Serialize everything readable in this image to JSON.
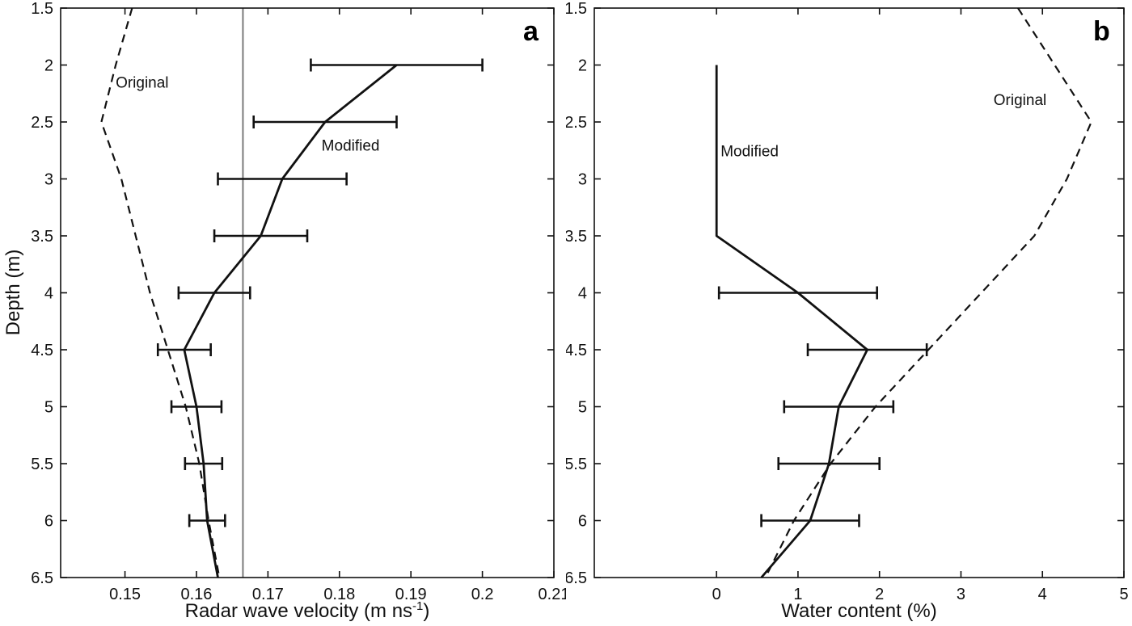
{
  "figure": {
    "background": "#ffffff",
    "ink_color": "#111111",
    "ref_line_color": "#7a7a7a"
  },
  "chart_data": [
    {
      "type": "line",
      "panel_letter": "a",
      "xlabel_pre": "Radar wave velocity (m ns",
      "xlabel_sup": "-1",
      "xlabel_post": ")",
      "ylabel": "Depth (m)",
      "xlim": [
        0.141,
        0.21
      ],
      "ylim": [
        1.5,
        6.5
      ],
      "y_axis_inverted": true,
      "grid": false,
      "xticks": [
        0.15,
        0.16,
        0.17,
        0.18,
        0.19,
        0.2,
        0.21
      ],
      "xtick_labels": [
        "0.15",
        "0.16",
        "0.17",
        "0.18",
        "0.19",
        "0.2",
        "0.21"
      ],
      "yticks": [
        1.5,
        2,
        2.5,
        3,
        3.5,
        4,
        4.5,
        5,
        5.5,
        6,
        6.5
      ],
      "ytick_labels": [
        "1.5",
        "2",
        "2.5",
        "3",
        "3.5",
        "4",
        "4.5",
        "5",
        "5.5",
        "6",
        "6.5"
      ],
      "reference_line_x": 0.1665,
      "series": [
        {
          "name": "Original",
          "style": "dashed",
          "depths": [
            1.5,
            2,
            2.5,
            3,
            3.5,
            4,
            4.5,
            5,
            5.5,
            6,
            6.5
          ],
          "values": [
            0.151,
            0.1487,
            0.1467,
            0.1495,
            0.1515,
            0.1535,
            0.156,
            0.1585,
            0.1604,
            0.1617,
            0.1632
          ]
        },
        {
          "name": "Modified",
          "style": "solid",
          "depths": [
            2,
            2.5,
            3,
            3.5,
            4,
            4.5,
            5,
            5.5,
            6,
            6.5
          ],
          "values": [
            0.188,
            0.178,
            0.172,
            0.169,
            0.1625,
            0.1583,
            0.16,
            0.161,
            0.1615,
            0.163
          ],
          "xerr": [
            0.012,
            0.01,
            0.009,
            0.0065,
            0.005,
            0.0037,
            0.0035,
            0.0026,
            0.0025,
            null
          ]
        }
      ],
      "annotations": [
        {
          "text": "Original",
          "x": 0.1487,
          "y": 2.2
        },
        {
          "text": "Modified",
          "x": 0.1775,
          "y": 2.75
        }
      ]
    },
    {
      "type": "line",
      "panel_letter": "b",
      "xlabel_pre": "Water content (%)",
      "xlabel_sup": "",
      "xlabel_post": "",
      "ylabel": "",
      "xlim": [
        -1.5,
        5
      ],
      "ylim": [
        1.5,
        6.5
      ],
      "y_axis_inverted": true,
      "grid": false,
      "xticks": [
        0,
        1,
        2,
        3,
        4,
        5
      ],
      "xtick_labels": [
        "0",
        "1",
        "2",
        "3",
        "4",
        "5"
      ],
      "yticks": [
        1.5,
        2,
        2.5,
        3,
        3.5,
        4,
        4.5,
        5,
        5.5,
        6,
        6.5
      ],
      "ytick_labels": [
        "1.5",
        "2",
        "2.5",
        "3",
        "3.5",
        "4",
        "4.5",
        "5",
        "5.5",
        "6",
        "6.5"
      ],
      "reference_line_x": null,
      "series": [
        {
          "name": "Original",
          "style": "dashed",
          "depths": [
            1.5,
            2.5,
            3,
            3.5,
            4,
            4.5,
            5,
            5.5,
            6,
            6.5
          ],
          "values": [
            3.7,
            4.6,
            4.3,
            3.9,
            3.25,
            2.6,
            1.95,
            1.4,
            0.95,
            0.6
          ]
        },
        {
          "name": "Modified",
          "style": "solid",
          "depths": [
            2,
            3.5,
            4,
            4.5,
            5,
            5.5,
            6,
            6.5
          ],
          "values": [
            0,
            0,
            1.0,
            1.85,
            1.5,
            1.38,
            1.15,
            0.55
          ],
          "xerr": [
            null,
            null,
            0.97,
            0.73,
            0.67,
            0.62,
            0.6,
            null
          ]
        }
      ],
      "annotations": [
        {
          "text": "Modified",
          "x": 0.05,
          "y": 2.8
        },
        {
          "text": "Original",
          "x": 3.4,
          "y": 2.35
        }
      ]
    }
  ]
}
